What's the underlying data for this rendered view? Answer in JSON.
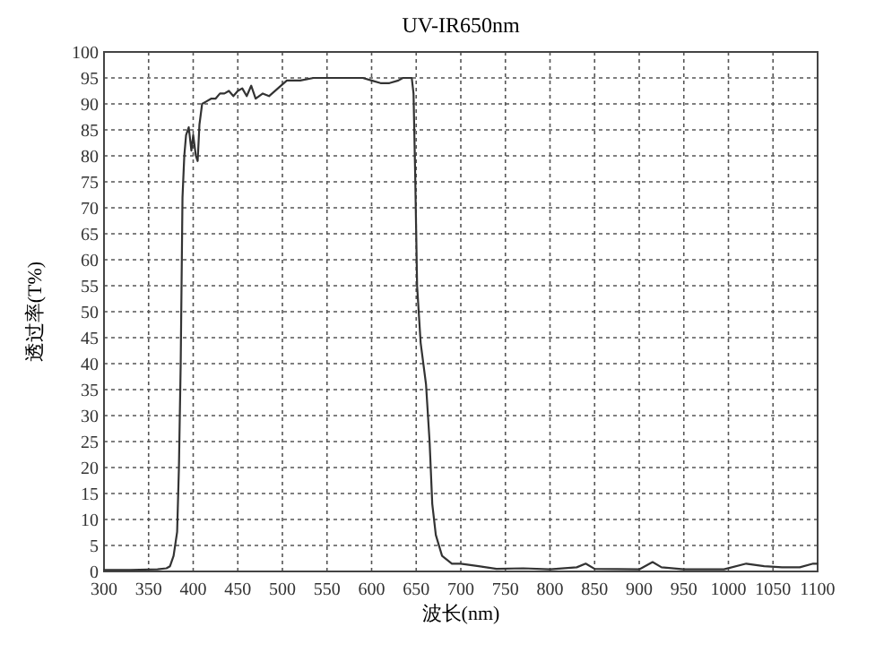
{
  "chart_data": {
    "type": "line",
    "title": "UV-IR650nm",
    "xlabel": "波长(nm)",
    "ylabel": "透过率(T%)",
    "xlim": [
      300,
      1100
    ],
    "xticks": [
      300,
      350,
      400,
      450,
      500,
      550,
      600,
      650,
      700,
      750,
      800,
      850,
      900,
      950,
      1000,
      1050,
      1100
    ],
    "ylim": [
      0,
      100
    ],
    "yticks": [
      0,
      5,
      10,
      15,
      20,
      25,
      30,
      35,
      40,
      45,
      50,
      55,
      60,
      65,
      70,
      75,
      80,
      85,
      90,
      95,
      100
    ],
    "grid": true,
    "line_style": "solid",
    "series": [
      {
        "color": "#333333",
        "x": [
          300,
          330,
          360,
          370,
          374,
          378,
          382,
          384,
          386,
          388,
          390,
          392,
          395,
          398,
          400,
          403,
          405,
          407,
          410,
          415,
          420,
          425,
          430,
          435,
          440,
          445,
          450,
          455,
          460,
          465,
          470,
          478,
          485,
          495,
          505,
          520,
          535,
          550,
          570,
          590,
          600,
          610,
          620,
          630,
          635,
          642,
          645,
          647,
          649,
          651,
          655,
          661,
          665,
          668,
          672,
          679,
          690,
          700,
          720,
          740,
          770,
          800,
          830,
          840,
          850,
          900,
          915,
          925,
          950,
          995,
          1020,
          1040,
          1060,
          1080,
          1095,
          1100
        ],
        "values": [
          0.3,
          0.3,
          0.4,
          0.6,
          1,
          3,
          7.6,
          20,
          40,
          72,
          80,
          84,
          85.5,
          81,
          84,
          80,
          79,
          86,
          90,
          90.5,
          91,
          91,
          92,
          92,
          92.5,
          91.5,
          92.5,
          93,
          91.5,
          93.5,
          91,
          92,
          91.5,
          93,
          94.5,
          94.5,
          95,
          95,
          95,
          95,
          94.5,
          94,
          94,
          94.5,
          95,
          95,
          95,
          92,
          75,
          55,
          44,
          36,
          25,
          13,
          7,
          3,
          1.5,
          1.5,
          1,
          0.5,
          0.6,
          0.4,
          0.8,
          1.5,
          0.5,
          0.4,
          1.8,
          0.8,
          0.4,
          0.4,
          1.5,
          1,
          0.8,
          0.8,
          1.5,
          1.5
        ]
      }
    ]
  }
}
